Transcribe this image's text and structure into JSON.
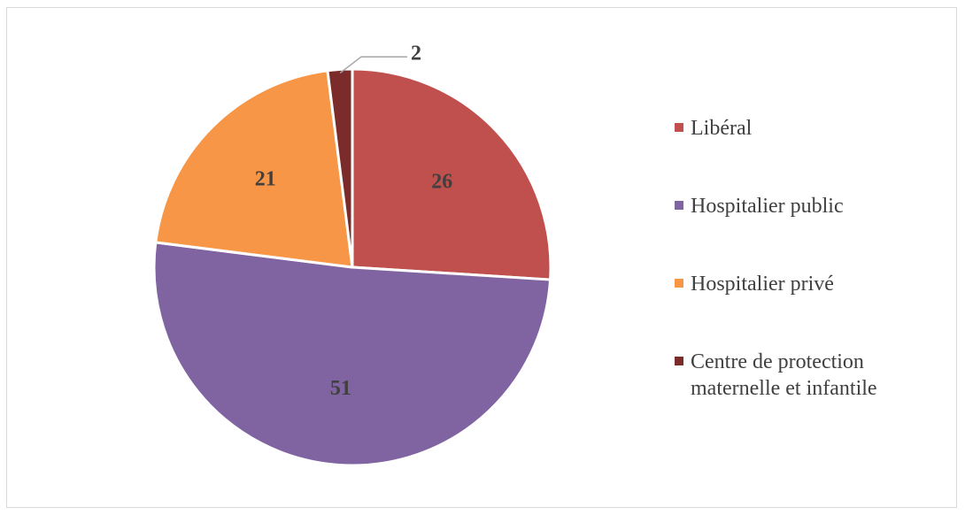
{
  "chart_data": {
    "type": "pie",
    "title": "",
    "slices": [
      {
        "label": "Libéral",
        "value": 26,
        "display": "26",
        "color": "#C0504D"
      },
      {
        "label": "Hospitalier public",
        "value": 51,
        "display": "51",
        "color": "#8064A2"
      },
      {
        "label": "Hospitalier privé",
        "value": 21,
        "display": "21",
        "color": "#F79646"
      },
      {
        "label": "Centre de protection maternelle et infantile",
        "value": 2,
        "display": "2",
        "color": "#7B2C2A"
      }
    ],
    "start_angle_deg": 0,
    "direction": "clockwise",
    "legend_position": "right",
    "label_style": "bold, inside slices; leader line for small slice"
  },
  "colors": {
    "border": "#d9d9d9",
    "text": "#404040",
    "slice_separator": "#ffffff"
  }
}
